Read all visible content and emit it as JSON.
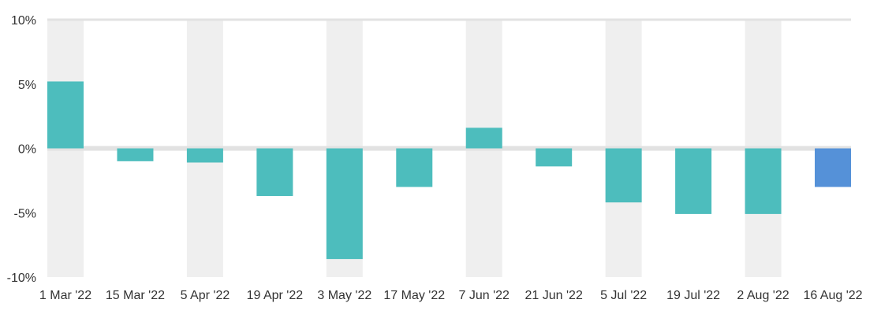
{
  "chart_data": {
    "type": "bar",
    "categories": [
      "1 Mar '22",
      "15 Mar '22",
      "5 Apr '22",
      "19 Apr '22",
      "3 May '22",
      "17 May '22",
      "7 Jun '22",
      "21 Jun '22",
      "5 Jul '22",
      "19 Jul '22",
      "2 Aug '22",
      "16 Aug '22"
    ],
    "values": [
      5.2,
      -1.0,
      -1.1,
      -3.7,
      -8.6,
      -3.0,
      1.6,
      -1.4,
      -4.2,
      -5.1,
      -5.1,
      -3.0
    ],
    "ylim": [
      -10,
      10
    ],
    "yticks": [
      10,
      5,
      0,
      -5,
      -10
    ],
    "ytick_labels": [
      "10%",
      "5%",
      "0%",
      "-5%",
      "-10%"
    ],
    "title": "",
    "xlabel": "",
    "ylabel": "",
    "grid": true,
    "legend": "none",
    "colors": {
      "bar": "#4dbdbd",
      "bar_highlight": "#5591d8",
      "column_band": "#efefef",
      "zero_line": "#e2e2e2",
      "top_line": "#e2e2e2"
    },
    "highlight_index": 11
  }
}
